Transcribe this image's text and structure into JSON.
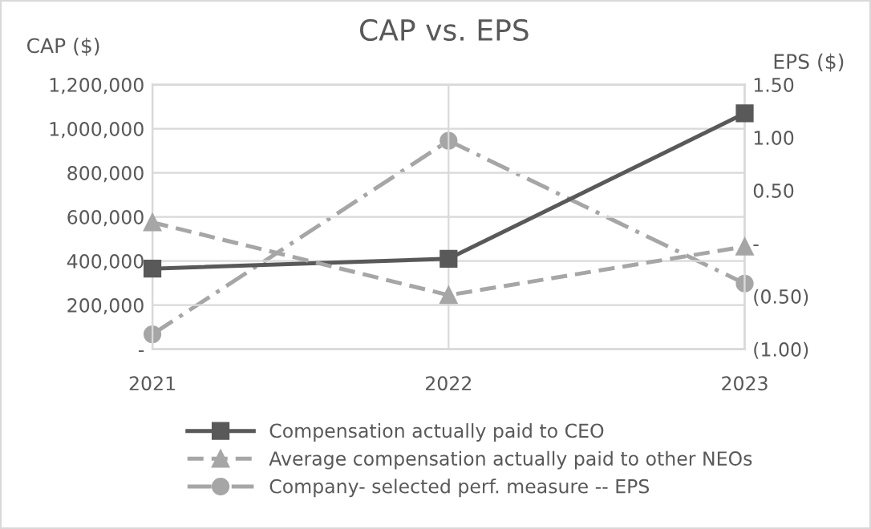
{
  "chart_data": {
    "type": "line",
    "title": "CAP vs. EPS",
    "ylabel": "CAP ($)",
    "y2label": "EPS ($)",
    "categories": [
      "2021",
      "2022",
      "2023"
    ],
    "series": [
      {
        "name": "Compensation actually paid to CEO",
        "color": "#595959",
        "values": [
          365000,
          410000,
          1070000
        ],
        "marker": "square",
        "line_style": "solid"
      },
      {
        "name": "Average compensation actually paid to other NEOs",
        "color": "#a6a6a6",
        "values": [
          575000,
          245000,
          465000
        ],
        "marker": "triangle",
        "line_style": "dashed"
      },
      {
        "name": "Company- selected perf. measure -- EPS",
        "color": "#a6a6a6",
        "values": [
          -0.86,
          0.97,
          -0.38
        ],
        "marker": "circle",
        "line_style": "dashdot",
        "axis": "y2"
      }
    ],
    "ylim": [
      0,
      1200000
    ],
    "yticks": [
      {
        "value": 0,
        "label": "-"
      },
      {
        "value": 200000,
        "label": "200,000"
      },
      {
        "value": 400000,
        "label": "400,000"
      },
      {
        "value": 600000,
        "label": "600,000"
      },
      {
        "value": 800000,
        "label": "800,000"
      },
      {
        "value": 1000000,
        "label": "1,000,000"
      },
      {
        "value": 1200000,
        "label": "1,200,000"
      }
    ],
    "y2lim": [
      -1.0,
      1.5
    ],
    "y2ticks": [
      {
        "value": -1.0,
        "label": "(1.00)"
      },
      {
        "value": -0.5,
        "label": "(0.50)"
      },
      {
        "value": 0,
        "label": "-"
      },
      {
        "value": 0.5,
        "label": "0.50"
      },
      {
        "value": 1.0,
        "label": "1.00"
      },
      {
        "value": 1.5,
        "label": "1.50"
      }
    ],
    "grid": true,
    "legend": "bottom"
  }
}
